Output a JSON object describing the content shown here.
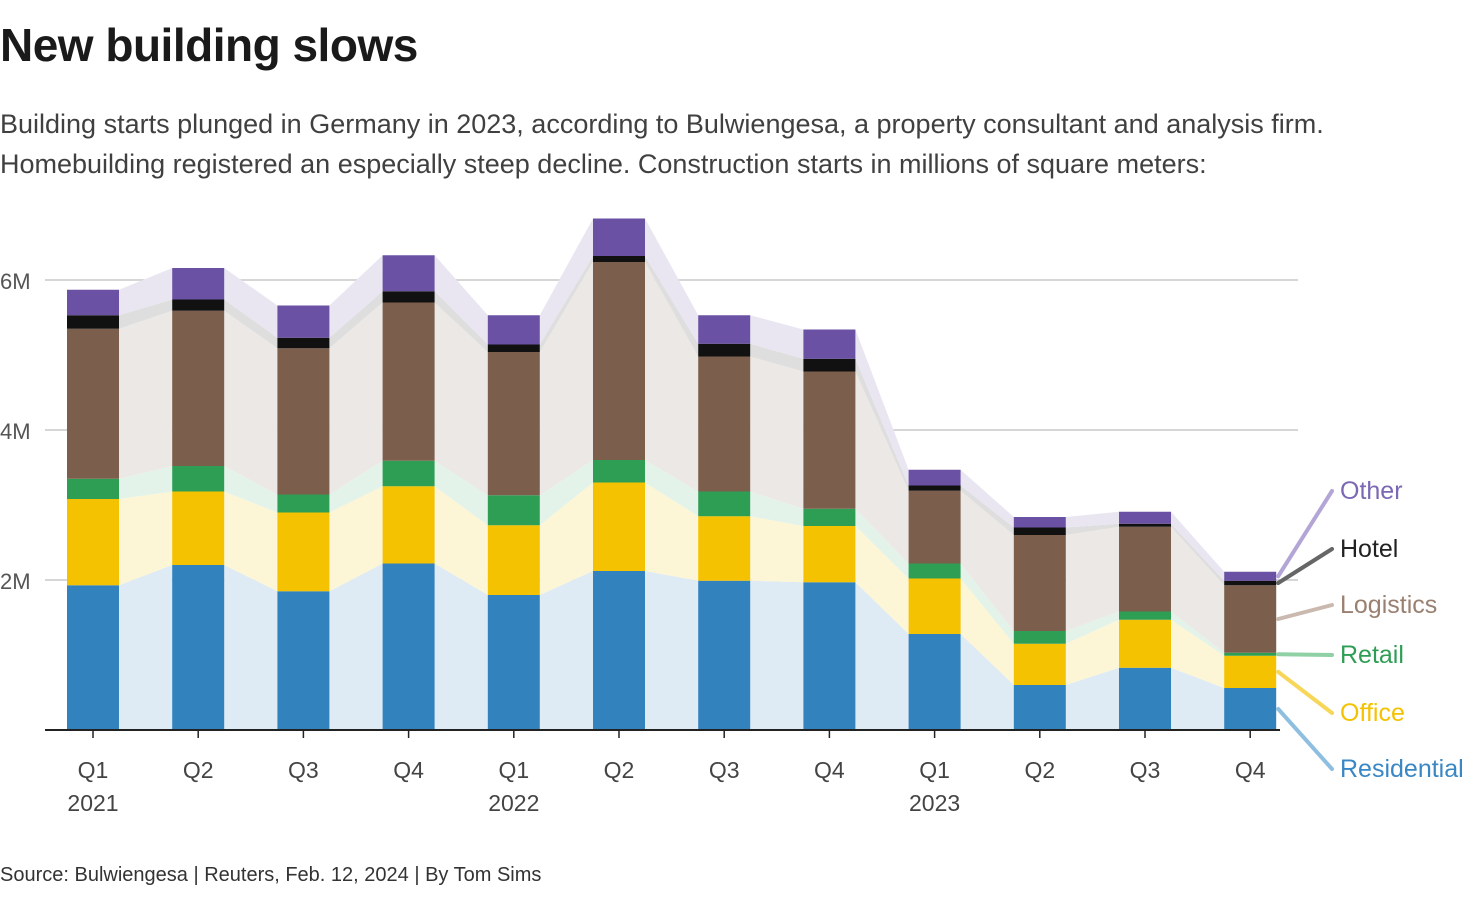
{
  "title": "New building slows",
  "subtitle": "Building starts plunged in Germany in 2023, according to Bulwiengesa, a property consultant and analysis firm. Homebuilding registered an especially steep decline. Construction starts in millions of square meters:",
  "source": "Source: Bulwiengesa | Reuters, Feb. 12, 2024 | By Tom Sims",
  "chart_data": {
    "type": "bar",
    "stacked": true,
    "categories": [
      "Q1 2021",
      "Q2 2021",
      "Q3 2021",
      "Q4 2021",
      "Q1 2022",
      "Q2 2022",
      "Q3 2022",
      "Q4 2022",
      "Q1 2023",
      "Q2 2023",
      "Q3 2023",
      "Q4 2023"
    ],
    "tick_labels": [
      {
        "quarter": "Q1",
        "year": "2021"
      },
      {
        "quarter": "Q2",
        "year": ""
      },
      {
        "quarter": "Q3",
        "year": ""
      },
      {
        "quarter": "Q4",
        "year": ""
      },
      {
        "quarter": "Q1",
        "year": "2022"
      },
      {
        "quarter": "Q2",
        "year": ""
      },
      {
        "quarter": "Q3",
        "year": ""
      },
      {
        "quarter": "Q4",
        "year": ""
      },
      {
        "quarter": "Q1",
        "year": "2023"
      },
      {
        "quarter": "Q2",
        "year": ""
      },
      {
        "quarter": "Q3",
        "year": ""
      },
      {
        "quarter": "Q4",
        "year": ""
      }
    ],
    "series": [
      {
        "name": "Residential",
        "color": "#3282be",
        "band_color": "#deeaf4",
        "label_color": "#3a87c5",
        "leader_color": "#8fbfe0",
        "values": [
          1.93,
          2.2,
          1.85,
          2.22,
          1.8,
          2.12,
          1.99,
          1.97,
          1.28,
          0.6,
          0.83,
          0.56
        ]
      },
      {
        "name": "Office",
        "color": "#f4c200",
        "band_color": "#fdf6d6",
        "label_color": "#f4c200",
        "leader_color": "#f7d75a",
        "values": [
          1.15,
          0.98,
          1.05,
          1.03,
          0.93,
          1.18,
          0.86,
          0.75,
          0.74,
          0.55,
          0.64,
          0.43
        ]
      },
      {
        "name": "Retail",
        "color": "#2f9e55",
        "band_color": "#e3f3e9",
        "label_color": "#2f9e55",
        "leader_color": "#8fd0a5",
        "values": [
          0.27,
          0.34,
          0.24,
          0.34,
          0.4,
          0.3,
          0.33,
          0.23,
          0.2,
          0.17,
          0.11,
          0.04
        ]
      },
      {
        "name": "Logistics",
        "color": "#7b5e4b",
        "band_color": "#ece8e5",
        "label_color": "#9a8070",
        "leader_color": "#c9b9ae",
        "values": [
          2.0,
          2.07,
          1.95,
          2.11,
          1.91,
          2.64,
          1.8,
          1.83,
          0.97,
          1.28,
          1.13,
          0.9
        ]
      },
      {
        "name": "Hotel",
        "color": "#111111",
        "band_color": "#dedede",
        "label_color": "#222222",
        "leader_color": "#666666",
        "values": [
          0.18,
          0.15,
          0.14,
          0.15,
          0.1,
          0.08,
          0.17,
          0.17,
          0.07,
          0.1,
          0.04,
          0.06
        ]
      },
      {
        "name": "Other",
        "color": "#6a51a3",
        "band_color": "#e9e6f2",
        "label_color": "#7b67b3",
        "leader_color": "#b3a6d6",
        "values": [
          0.34,
          0.42,
          0.43,
          0.48,
          0.39,
          0.5,
          0.38,
          0.39,
          0.21,
          0.14,
          0.16,
          0.12
        ]
      }
    ],
    "yticks": [
      {
        "value": 2,
        "label": "2M"
      },
      {
        "value": 4,
        "label": "4M"
      },
      {
        "value": 6,
        "label": "6M"
      }
    ],
    "ylim": [
      0,
      7
    ],
    "grid": true,
    "legend": "right, labels aligned to last bar"
  }
}
